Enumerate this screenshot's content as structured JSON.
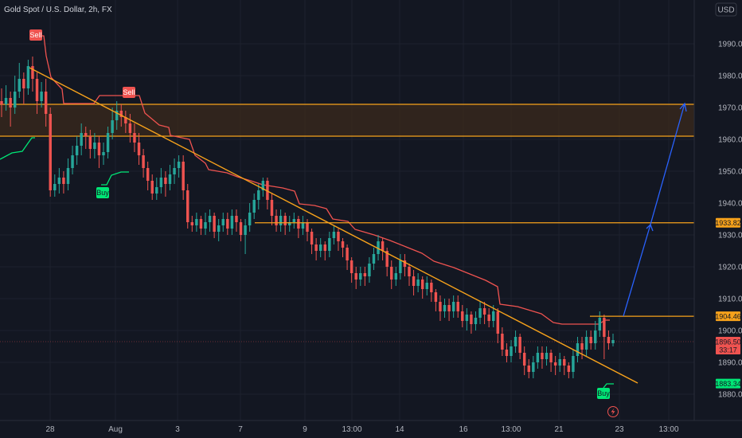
{
  "header": {
    "symbol_title": "Gold Spot / U.S. Dollar, 2h, FX",
    "currency_button": "USD"
  },
  "chart_data": {
    "type": "candlestick",
    "ylim": [
      1877,
      2003
    ],
    "y_ticks": [
      1880,
      1890,
      1900,
      1910,
      1920,
      1930,
      1940,
      1950,
      1960,
      1970,
      1980,
      1990
    ],
    "y_tick_labels": [
      "1880.00",
      "1890.00",
      "1900.00",
      "1910.00",
      "1920.00",
      "1930.00",
      "1940.00",
      "1950.00",
      "1960.00",
      "1970.00",
      "1980.00",
      "1990.00"
    ],
    "x_tick_labels": [
      "28",
      "Aug",
      "3",
      "7",
      "9",
      "13:00",
      "14",
      "16",
      "13:00",
      "21",
      "23",
      "13:00"
    ],
    "price_tags": {
      "level_1933": "1933.82",
      "level_1904": "1904.46",
      "last_price": "1896.50",
      "countdown": "33:17",
      "low_level": "1883.34"
    },
    "colors": {
      "up": "#26a69a",
      "down": "#ef5350",
      "trend_line": "#f7a21b",
      "zone_fill": "#3b2a1c",
      "projection": "#2962ff",
      "trailing_stop": "#ef5350",
      "support_trail": "#00e676"
    },
    "signals": [
      {
        "label": "Sell",
        "type": "sell"
      },
      {
        "label": "Sell",
        "type": "sell"
      },
      {
        "label": "Buy",
        "type": "buy"
      },
      {
        "label": "Buy",
        "type": "buy"
      }
    ],
    "resistance_zone": [
      1961,
      1971
    ],
    "horizontal_levels": [
      1933.82,
      1904.46
    ],
    "candles": [
      [
        1972,
        1971,
        1976,
        1967
      ],
      [
        1971,
        1973,
        1977,
        1969
      ],
      [
        1973,
        1970,
        1975,
        1964
      ],
      [
        1970,
        1975,
        1980,
        1968
      ],
      [
        1975,
        1979,
        1984,
        1973
      ],
      [
        1979,
        1976,
        1981,
        1971
      ],
      [
        1976,
        1983,
        1985,
        1974
      ],
      [
        1983,
        1979,
        1986,
        1975
      ],
      [
        1979,
        1972,
        1981,
        1968
      ],
      [
        1972,
        1975,
        1978,
        1970
      ],
      [
        1975,
        1968,
        1979,
        1964
      ],
      [
        1968,
        1944,
        1970,
        1942
      ],
      [
        1944,
        1946,
        1949,
        1942
      ],
      [
        1946,
        1948,
        1951,
        1943
      ],
      [
        1948,
        1946,
        1950,
        1943
      ],
      [
        1946,
        1951,
        1954,
        1944
      ],
      [
        1951,
        1955,
        1958,
        1949
      ],
      [
        1955,
        1958,
        1961,
        1952
      ],
      [
        1958,
        1962,
        1965,
        1955
      ],
      [
        1962,
        1961,
        1964,
        1957
      ],
      [
        1961,
        1957,
        1963,
        1954
      ],
      [
        1957,
        1959,
        1962,
        1954
      ],
      [
        1959,
        1955,
        1961,
        1951
      ],
      [
        1955,
        1956,
        1959,
        1952
      ],
      [
        1956,
        1962,
        1964,
        1954
      ],
      [
        1962,
        1966,
        1970,
        1960
      ],
      [
        1966,
        1969,
        1972,
        1963
      ],
      [
        1969,
        1967,
        1971,
        1964
      ],
      [
        1967,
        1965,
        1969,
        1962
      ],
      [
        1965,
        1962,
        1968,
        1959
      ],
      [
        1962,
        1959,
        1965,
        1956
      ],
      [
        1959,
        1955,
        1962,
        1952
      ],
      [
        1955,
        1951,
        1957,
        1948
      ],
      [
        1951,
        1947,
        1953,
        1944
      ],
      [
        1947,
        1943,
        1949,
        1941
      ],
      [
        1943,
        1945,
        1948,
        1941
      ],
      [
        1945,
        1948,
        1951,
        1943
      ],
      [
        1948,
        1946,
        1950,
        1942
      ],
      [
        1946,
        1949,
        1952,
        1944
      ],
      [
        1949,
        1951,
        1954,
        1946
      ],
      [
        1951,
        1953,
        1955,
        1948
      ],
      [
        1953,
        1944,
        1955,
        1941
      ],
      [
        1944,
        1934,
        1946,
        1932
      ],
      [
        1934,
        1933,
        1936,
        1931
      ],
      [
        1933,
        1935,
        1937,
        1931
      ],
      [
        1935,
        1932,
        1936,
        1930
      ],
      [
        1932,
        1934,
        1937,
        1930
      ],
      [
        1934,
        1936,
        1938,
        1931
      ],
      [
        1936,
        1931,
        1937,
        1929
      ],
      [
        1931,
        1933,
        1935,
        1928
      ],
      [
        1933,
        1935,
        1937,
        1931
      ],
      [
        1935,
        1932,
        1937,
        1930
      ],
      [
        1932,
        1936,
        1938,
        1930
      ],
      [
        1936,
        1934,
        1938,
        1931
      ],
      [
        1934,
        1930,
        1935,
        1928
      ],
      [
        1930,
        1933,
        1935,
        1924
      ],
      [
        1933,
        1937,
        1940,
        1931
      ],
      [
        1937,
        1941,
        1943,
        1935
      ],
      [
        1941,
        1944,
        1946,
        1938
      ],
      [
        1944,
        1947,
        1948,
        1942
      ],
      [
        1947,
        1941,
        1948,
        1938
      ],
      [
        1941,
        1936,
        1943,
        1933
      ],
      [
        1936,
        1933,
        1938,
        1931
      ],
      [
        1933,
        1936,
        1938,
        1931
      ],
      [
        1936,
        1933,
        1937,
        1930
      ],
      [
        1933,
        1934,
        1936,
        1931
      ],
      [
        1934,
        1935,
        1937,
        1932
      ],
      [
        1935,
        1932,
        1936,
        1929
      ],
      [
        1932,
        1934,
        1936,
        1930
      ],
      [
        1934,
        1931,
        1935,
        1928
      ],
      [
        1931,
        1927,
        1932,
        1924
      ],
      [
        1927,
        1925,
        1929,
        1922
      ],
      [
        1925,
        1927,
        1929,
        1923
      ],
      [
        1927,
        1925,
        1928,
        1922
      ],
      [
        1925,
        1929,
        1931,
        1923
      ],
      [
        1929,
        1931,
        1933,
        1927
      ],
      [
        1931,
        1928,
        1932,
        1925
      ],
      [
        1928,
        1926,
        1929,
        1923
      ],
      [
        1926,
        1922,
        1927,
        1919
      ],
      [
        1922,
        1918,
        1923,
        1915
      ],
      [
        1918,
        1916,
        1920,
        1913
      ],
      [
        1916,
        1918,
        1920,
        1914
      ],
      [
        1918,
        1917,
        1920,
        1914
      ],
      [
        1917,
        1921,
        1923,
        1915
      ],
      [
        1921,
        1924,
        1926,
        1919
      ],
      [
        1924,
        1928,
        1930,
        1922
      ],
      [
        1928,
        1925,
        1929,
        1922
      ],
      [
        1925,
        1920,
        1926,
        1917
      ],
      [
        1920,
        1916,
        1922,
        1913
      ],
      [
        1916,
        1918,
        1920,
        1914
      ],
      [
        1918,
        1922,
        1924,
        1916
      ],
      [
        1922,
        1920,
        1924,
        1917
      ],
      [
        1920,
        1917,
        1921,
        1914
      ],
      [
        1917,
        1914,
        1919,
        1911
      ],
      [
        1914,
        1916,
        1918,
        1912
      ],
      [
        1916,
        1913,
        1917,
        1910
      ],
      [
        1913,
        1915,
        1917,
        1911
      ],
      [
        1915,
        1912,
        1916,
        1909
      ],
      [
        1912,
        1909,
        1913,
        1906
      ],
      [
        1909,
        1906,
        1911,
        1903
      ],
      [
        1906,
        1908,
        1910,
        1904
      ],
      [
        1908,
        1906,
        1910,
        1903
      ],
      [
        1906,
        1909,
        1911,
        1904
      ],
      [
        1909,
        1906,
        1911,
        1904
      ],
      [
        1906,
        1903,
        1908,
        1901
      ],
      [
        1903,
        1905,
        1907,
        1900
      ],
      [
        1905,
        1902,
        1906,
        1899
      ],
      [
        1902,
        1904,
        1906,
        1900
      ],
      [
        1904,
        1907,
        1909,
        1902
      ],
      [
        1907,
        1905,
        1909,
        1902
      ],
      [
        1905,
        1903,
        1907,
        1901
      ],
      [
        1903,
        1906,
        1908,
        1901
      ],
      [
        1906,
        1899,
        1907,
        1896
      ],
      [
        1899,
        1894,
        1901,
        1892
      ],
      [
        1894,
        1892,
        1896,
        1890
      ],
      [
        1892,
        1895,
        1897,
        1890
      ],
      [
        1895,
        1898,
        1900,
        1893
      ],
      [
        1898,
        1893,
        1899,
        1891
      ],
      [
        1893,
        1889,
        1895,
        1886
      ],
      [
        1889,
        1887,
        1891,
        1885
      ],
      [
        1887,
        1890,
        1892,
        1885
      ],
      [
        1890,
        1893,
        1895,
        1888
      ],
      [
        1893,
        1891,
        1895,
        1888
      ],
      [
        1891,
        1893,
        1895,
        1889
      ],
      [
        1893,
        1890,
        1894,
        1887
      ],
      [
        1890,
        1889,
        1892,
        1886
      ],
      [
        1889,
        1891,
        1893,
        1887
      ],
      [
        1891,
        1889,
        1892,
        1886
      ],
      [
        1889,
        1887,
        1890,
        1885
      ],
      [
        1887,
        1892,
        1894,
        1885
      ],
      [
        1892,
        1896,
        1898,
        1890
      ],
      [
        1896,
        1894,
        1898,
        1891
      ],
      [
        1894,
        1898,
        1900,
        1892
      ],
      [
        1898,
        1896,
        1900,
        1894
      ],
      [
        1896,
        1900,
        1903,
        1894
      ],
      [
        1900,
        1904,
        1906,
        1898
      ],
      [
        1904,
        1898,
        1905,
        1891
      ],
      [
        1898,
        1896,
        1900,
        1894
      ],
      [
        1896,
        1897,
        1899,
        1895
      ]
    ]
  }
}
